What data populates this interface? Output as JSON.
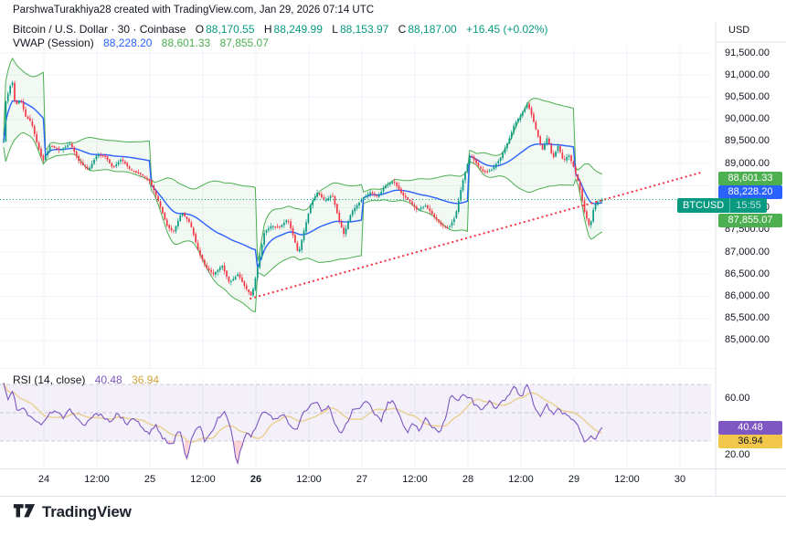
{
  "attribution": "ParshwaTurakhiya28 created with TradingView.com, Jan 29, 2026 07:14 UTC",
  "legend": {
    "symbol_title": "Bitcoin / U.S. Dollar · 30 · Coinbase",
    "open_label": "O",
    "open": "88,170.55",
    "high_label": "H",
    "high": "88,249.99",
    "low_label": "L",
    "low": "88,153.97",
    "close_label": "C",
    "close": "88,187.00",
    "change": "+16.45 (+0.02%)"
  },
  "vwap_legend": {
    "label": "VWAP (Session)",
    "value": "88,228.20",
    "upper": "88,601.33",
    "lower": "87,855.07"
  },
  "rsi_legend": {
    "label": "RSI (14, close)",
    "value": "40.48",
    "ma_value": "36.94"
  },
  "badges": {
    "vwap_upper": "88,601.33",
    "vwap_value": "88,228.20",
    "symbol": "BTCUSD",
    "countdown": "15:55",
    "vwap_lower": "87,855.07",
    "rsi": "40.48",
    "rsi_ma": "36.94"
  },
  "price_axis": {
    "currency": "USD",
    "labels": [
      {
        "text": "91,500.00",
        "value": 91500
      },
      {
        "text": "91,000.00",
        "value": 91000
      },
      {
        "text": "90,500.00",
        "value": 90500
      },
      {
        "text": "90,000.00",
        "value": 90000
      },
      {
        "text": "89,500.00",
        "value": 89500
      },
      {
        "text": "89,000.00",
        "value": 89000
      },
      {
        "text": "88,500.00",
        "value": 88500
      },
      {
        "text": "88,000.00",
        "value": 88000
      },
      {
        "text": "87,500.00",
        "value": 87500
      },
      {
        "text": "87,000.00",
        "value": 87000
      },
      {
        "text": "86,500.00",
        "value": 86500
      },
      {
        "text": "86,000.00",
        "value": 86000
      },
      {
        "text": "85,500.00",
        "value": 85500
      },
      {
        "text": "85,000.00",
        "value": 85000
      }
    ]
  },
  "rsi_axis": [
    {
      "text": "60.00",
      "value": 60
    },
    {
      "text": "20.00",
      "value": 20
    }
  ],
  "time_axis": [
    {
      "text": "24",
      "t": 24,
      "bold": false
    },
    {
      "text": "12:00",
      "t": 24.5,
      "bold": false
    },
    {
      "text": "25",
      "t": 25,
      "bold": false
    },
    {
      "text": "12:00",
      "t": 25.5,
      "bold": false
    },
    {
      "text": "26",
      "t": 26,
      "bold": true
    },
    {
      "text": "12:00",
      "t": 26.5,
      "bold": false
    },
    {
      "text": "27",
      "t": 27,
      "bold": false
    },
    {
      "text": "12:00",
      "t": 27.5,
      "bold": false
    },
    {
      "text": "28",
      "t": 28,
      "bold": false
    },
    {
      "text": "12:00",
      "t": 28.5,
      "bold": false
    },
    {
      "text": "29",
      "t": 29,
      "bold": false
    },
    {
      "text": "12:00",
      "t": 29.5,
      "bold": false
    },
    {
      "text": "30",
      "t": 30,
      "bold": false
    }
  ],
  "logo": {
    "text": "TradingView"
  },
  "colors": {
    "up": "#089981",
    "down": "#F23645",
    "vwap": "#2962FF",
    "band": "#4CAF50",
    "band_fill": "rgba(76,175,80,0.07)",
    "trend": "#F23645",
    "price_line": "#089981",
    "rsi": "#7E57C2",
    "rsi_ma": "#E9CF8E",
    "rsi_band_fill": "rgba(126,87,194,0.09)",
    "rsi_extreme_fill": "rgba(242,54,69,0.22)",
    "grid": "#F0F3FA",
    "axis_border": "#E0E3EB",
    "level_dash": "#B2B5BE",
    "text": "#131722"
  },
  "chart_data": [
    {
      "type": "candlestick",
      "title": "Bitcoin / U.S. Dollar",
      "interval_minutes": 30,
      "exchange": "Coinbase",
      "ohlc": {
        "open": 88170.55,
        "high": 88249.99,
        "low": 88153.97,
        "close": 88187.0,
        "change": 16.45,
        "change_pct": 0.02
      },
      "vwap_session": {
        "value": 88228.2,
        "upper": 88601.33,
        "lower": 87855.07
      },
      "ylim": [
        84800,
        91600
      ],
      "time_domain_days": [
        23.62,
        30.22
      ],
      "current_price_line": 88187.0,
      "trendline": {
        "type": "dotted",
        "from": [
          25.95,
          85950
        ],
        "to": [
          30.2,
          88800
        ]
      },
      "close_path": [
        [
          23.62,
          89500
        ],
        [
          23.64,
          90400
        ],
        [
          23.7,
          90900
        ],
        [
          23.73,
          90300
        ],
        [
          23.78,
          90450
        ],
        [
          23.83,
          90050
        ],
        [
          23.88,
          89950
        ],
        [
          23.93,
          89500
        ],
        [
          23.99,
          89050
        ],
        [
          24.06,
          89400
        ],
        [
          24.15,
          89300
        ],
        [
          24.25,
          89450
        ],
        [
          24.33,
          89050
        ],
        [
          24.42,
          88850
        ],
        [
          24.5,
          89200
        ],
        [
          24.58,
          89150
        ],
        [
          24.65,
          88900
        ],
        [
          24.73,
          89100
        ],
        [
          24.82,
          88850
        ],
        [
          24.92,
          88750
        ],
        [
          25.0,
          88600
        ],
        [
          25.08,
          88150
        ],
        [
          25.16,
          87600
        ],
        [
          25.22,
          87450
        ],
        [
          25.3,
          87900
        ],
        [
          25.38,
          87650
        ],
        [
          25.46,
          87000
        ],
        [
          25.53,
          86650
        ],
        [
          25.6,
          86500
        ],
        [
          25.68,
          86700
        ],
        [
          25.75,
          86300
        ],
        [
          25.83,
          86500
        ],
        [
          25.9,
          86200
        ],
        [
          25.96,
          86000
        ],
        [
          26.02,
          86700
        ],
        [
          26.08,
          87450
        ],
        [
          26.15,
          87600
        ],
        [
          26.22,
          87550
        ],
        [
          26.3,
          87750
        ],
        [
          26.36,
          87300
        ],
        [
          26.4,
          86950
        ],
        [
          26.45,
          87450
        ],
        [
          26.52,
          88100
        ],
        [
          26.58,
          88350
        ],
        [
          26.65,
          88150
        ],
        [
          26.72,
          88300
        ],
        [
          26.78,
          87750
        ],
        [
          26.83,
          87400
        ],
        [
          26.9,
          87900
        ],
        [
          27.0,
          88200
        ],
        [
          27.08,
          88350
        ],
        [
          27.15,
          88250
        ],
        [
          27.22,
          88500
        ],
        [
          27.3,
          88600
        ],
        [
          27.38,
          88300
        ],
        [
          27.45,
          88150
        ],
        [
          27.52,
          87950
        ],
        [
          27.6,
          88050
        ],
        [
          27.68,
          87800
        ],
        [
          27.75,
          87600
        ],
        [
          27.82,
          87550
        ],
        [
          27.88,
          87800
        ],
        [
          27.95,
          88600
        ],
        [
          28.02,
          89200
        ],
        [
          28.08,
          89000
        ],
        [
          28.15,
          88800
        ],
        [
          28.22,
          88850
        ],
        [
          28.3,
          89100
        ],
        [
          28.38,
          89500
        ],
        [
          28.44,
          89900
        ],
        [
          28.5,
          90100
        ],
        [
          28.56,
          90350
        ],
        [
          28.6,
          90100
        ],
        [
          28.65,
          89700
        ],
        [
          28.7,
          89300
        ],
        [
          28.75,
          89600
        ],
        [
          28.8,
          89100
        ],
        [
          28.85,
          89400
        ],
        [
          28.9,
          89050
        ],
        [
          28.95,
          89200
        ],
        [
          29.0,
          88900
        ],
        [
          29.05,
          88500
        ],
        [
          29.1,
          87900
        ],
        [
          29.15,
          87550
        ],
        [
          29.19,
          88050
        ],
        [
          29.23,
          88150
        ],
        [
          29.27,
          88187
        ]
      ]
    },
    {
      "type": "line",
      "name": "RSI (14, close)",
      "current": 40.48,
      "ma_current": 36.94,
      "levels": [
        70,
        50,
        30
      ],
      "band": [
        30,
        70
      ],
      "ylim": [
        10,
        75
      ],
      "values_path": [
        [
          23.62,
          72
        ],
        [
          23.66,
          58
        ],
        [
          23.7,
          65
        ],
        [
          23.75,
          52
        ],
        [
          23.8,
          55
        ],
        [
          23.85,
          48
        ],
        [
          23.92,
          44
        ],
        [
          23.98,
          40
        ],
        [
          24.04,
          49
        ],
        [
          24.1,
          52
        ],
        [
          24.18,
          46
        ],
        [
          24.25,
          53
        ],
        [
          24.32,
          44
        ],
        [
          24.4,
          42
        ],
        [
          24.48,
          50
        ],
        [
          24.55,
          48
        ],
        [
          24.62,
          44
        ],
        [
          24.7,
          50
        ],
        [
          24.78,
          42
        ],
        [
          24.85,
          46
        ],
        [
          24.92,
          40
        ],
        [
          25.0,
          36
        ],
        [
          25.05,
          42
        ],
        [
          25.1,
          34
        ],
        [
          25.16,
          30
        ],
        [
          25.22,
          28
        ],
        [
          25.28,
          40
        ],
        [
          25.34,
          16
        ],
        [
          25.4,
          34
        ],
        [
          25.46,
          42
        ],
        [
          25.52,
          30
        ],
        [
          25.58,
          35
        ],
        [
          25.64,
          46
        ],
        [
          25.7,
          50
        ],
        [
          25.76,
          42
        ],
        [
          25.82,
          13
        ],
        [
          25.88,
          30
        ],
        [
          25.92,
          38
        ],
        [
          25.96,
          33
        ],
        [
          26.02,
          44
        ],
        [
          26.08,
          52
        ],
        [
          26.14,
          48
        ],
        [
          26.2,
          44
        ],
        [
          26.26,
          50
        ],
        [
          26.32,
          42
        ],
        [
          26.38,
          36
        ],
        [
          26.44,
          48
        ],
        [
          26.5,
          55
        ],
        [
          26.56,
          58
        ],
        [
          26.62,
          52
        ],
        [
          26.68,
          55
        ],
        [
          26.74,
          44
        ],
        [
          26.8,
          36
        ],
        [
          26.86,
          44
        ],
        [
          26.92,
          52
        ],
        [
          27.0,
          55
        ],
        [
          27.06,
          58
        ],
        [
          27.12,
          50
        ],
        [
          27.18,
          44
        ],
        [
          27.24,
          56
        ],
        [
          27.3,
          58
        ],
        [
          27.36,
          48
        ],
        [
          27.42,
          36
        ],
        [
          27.48,
          42
        ],
        [
          27.54,
          38
        ],
        [
          27.6,
          46
        ],
        [
          27.66,
          40
        ],
        [
          27.72,
          35
        ],
        [
          27.78,
          44
        ],
        [
          27.84,
          63
        ],
        [
          27.9,
          58
        ],
        [
          27.96,
          62
        ],
        [
          28.02,
          60
        ],
        [
          28.08,
          55
        ],
        [
          28.14,
          52
        ],
        [
          28.2,
          58
        ],
        [
          28.26,
          54
        ],
        [
          28.32,
          58
        ],
        [
          28.38,
          62
        ],
        [
          28.44,
          68
        ],
        [
          28.5,
          60
        ],
        [
          28.56,
          71
        ],
        [
          28.62,
          55
        ],
        [
          28.68,
          48
        ],
        [
          28.74,
          56
        ],
        [
          28.8,
          48
        ],
        [
          28.86,
          53
        ],
        [
          28.92,
          48
        ],
        [
          28.98,
          45
        ],
        [
          29.04,
          42
        ],
        [
          29.1,
          28
        ],
        [
          29.16,
          35
        ],
        [
          29.2,
          32
        ],
        [
          29.24,
          38
        ],
        [
          29.27,
          40.48
        ]
      ]
    }
  ]
}
